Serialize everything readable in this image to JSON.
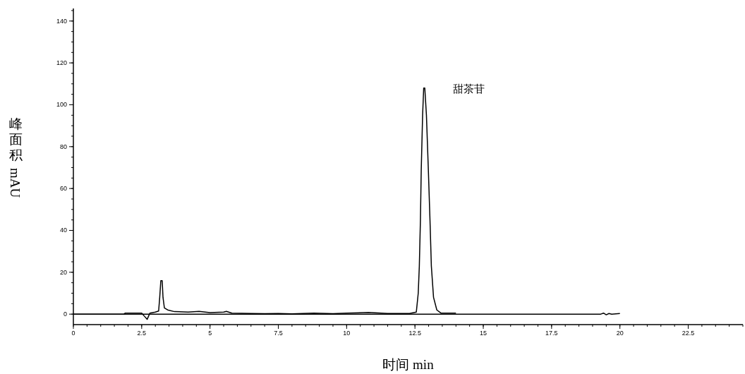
{
  "chart_data": {
    "type": "line",
    "xlabel": "时间 min",
    "ylabel": "峰面积 mAU",
    "annotations": [
      {
        "text": "甜茶苷",
        "x": 12.85,
        "y": 108
      }
    ],
    "xlim": [
      0,
      24.5
    ],
    "xticks": [
      0,
      2.5,
      5,
      7.5,
      10,
      12.5,
      15,
      17.5,
      20,
      22.5
    ],
    "ylim": [
      -5,
      146
    ],
    "yticks": [
      0,
      20,
      40,
      60,
      80,
      100,
      120,
      140
    ],
    "grid": false,
    "series": [
      {
        "color": "#000000",
        "x": [
          0,
          19.3,
          19.4,
          19.5,
          19.6,
          19.7,
          20
        ],
        "values": [
          0,
          0,
          0.5,
          -0.3,
          0.3,
          0,
          0.3
        ]
      },
      {
        "color": "#000000",
        "x": [
          0,
          1.85,
          1.9,
          2.5,
          2.6,
          2.7,
          2.75,
          2.8,
          3.0,
          3.12,
          3.16,
          3.2,
          3.25,
          3.28,
          3.33,
          3.45,
          3.7,
          4.2,
          4.6,
          5.0,
          5.5,
          5.6,
          5.8,
          6.5,
          7.0,
          7.5,
          8.0,
          8.8,
          9.5,
          10,
          10.8,
          11.5,
          12.3,
          12.55,
          12.62,
          12.66,
          12.7,
          12.73,
          12.78,
          12.82,
          12.86,
          12.92,
          12.99,
          13.05,
          13.1,
          13.18,
          13.3,
          13.45,
          14
        ],
        "values": [
          0,
          0,
          0.5,
          0.5,
          -1,
          -2.5,
          -1,
          0.5,
          1,
          1.5,
          8,
          16,
          16,
          8,
          3,
          2,
          1.2,
          1,
          1.3,
          0.7,
          1,
          1.3,
          0.5,
          0.3,
          0.2,
          0.3,
          0.1,
          0.5,
          0.2,
          0.5,
          0.8,
          0.3,
          0.3,
          1,
          10,
          23,
          45,
          69,
          95,
          108,
          108,
          95,
          69,
          45,
          23,
          8,
          2,
          0.5,
          0.5
        ]
      }
    ]
  }
}
